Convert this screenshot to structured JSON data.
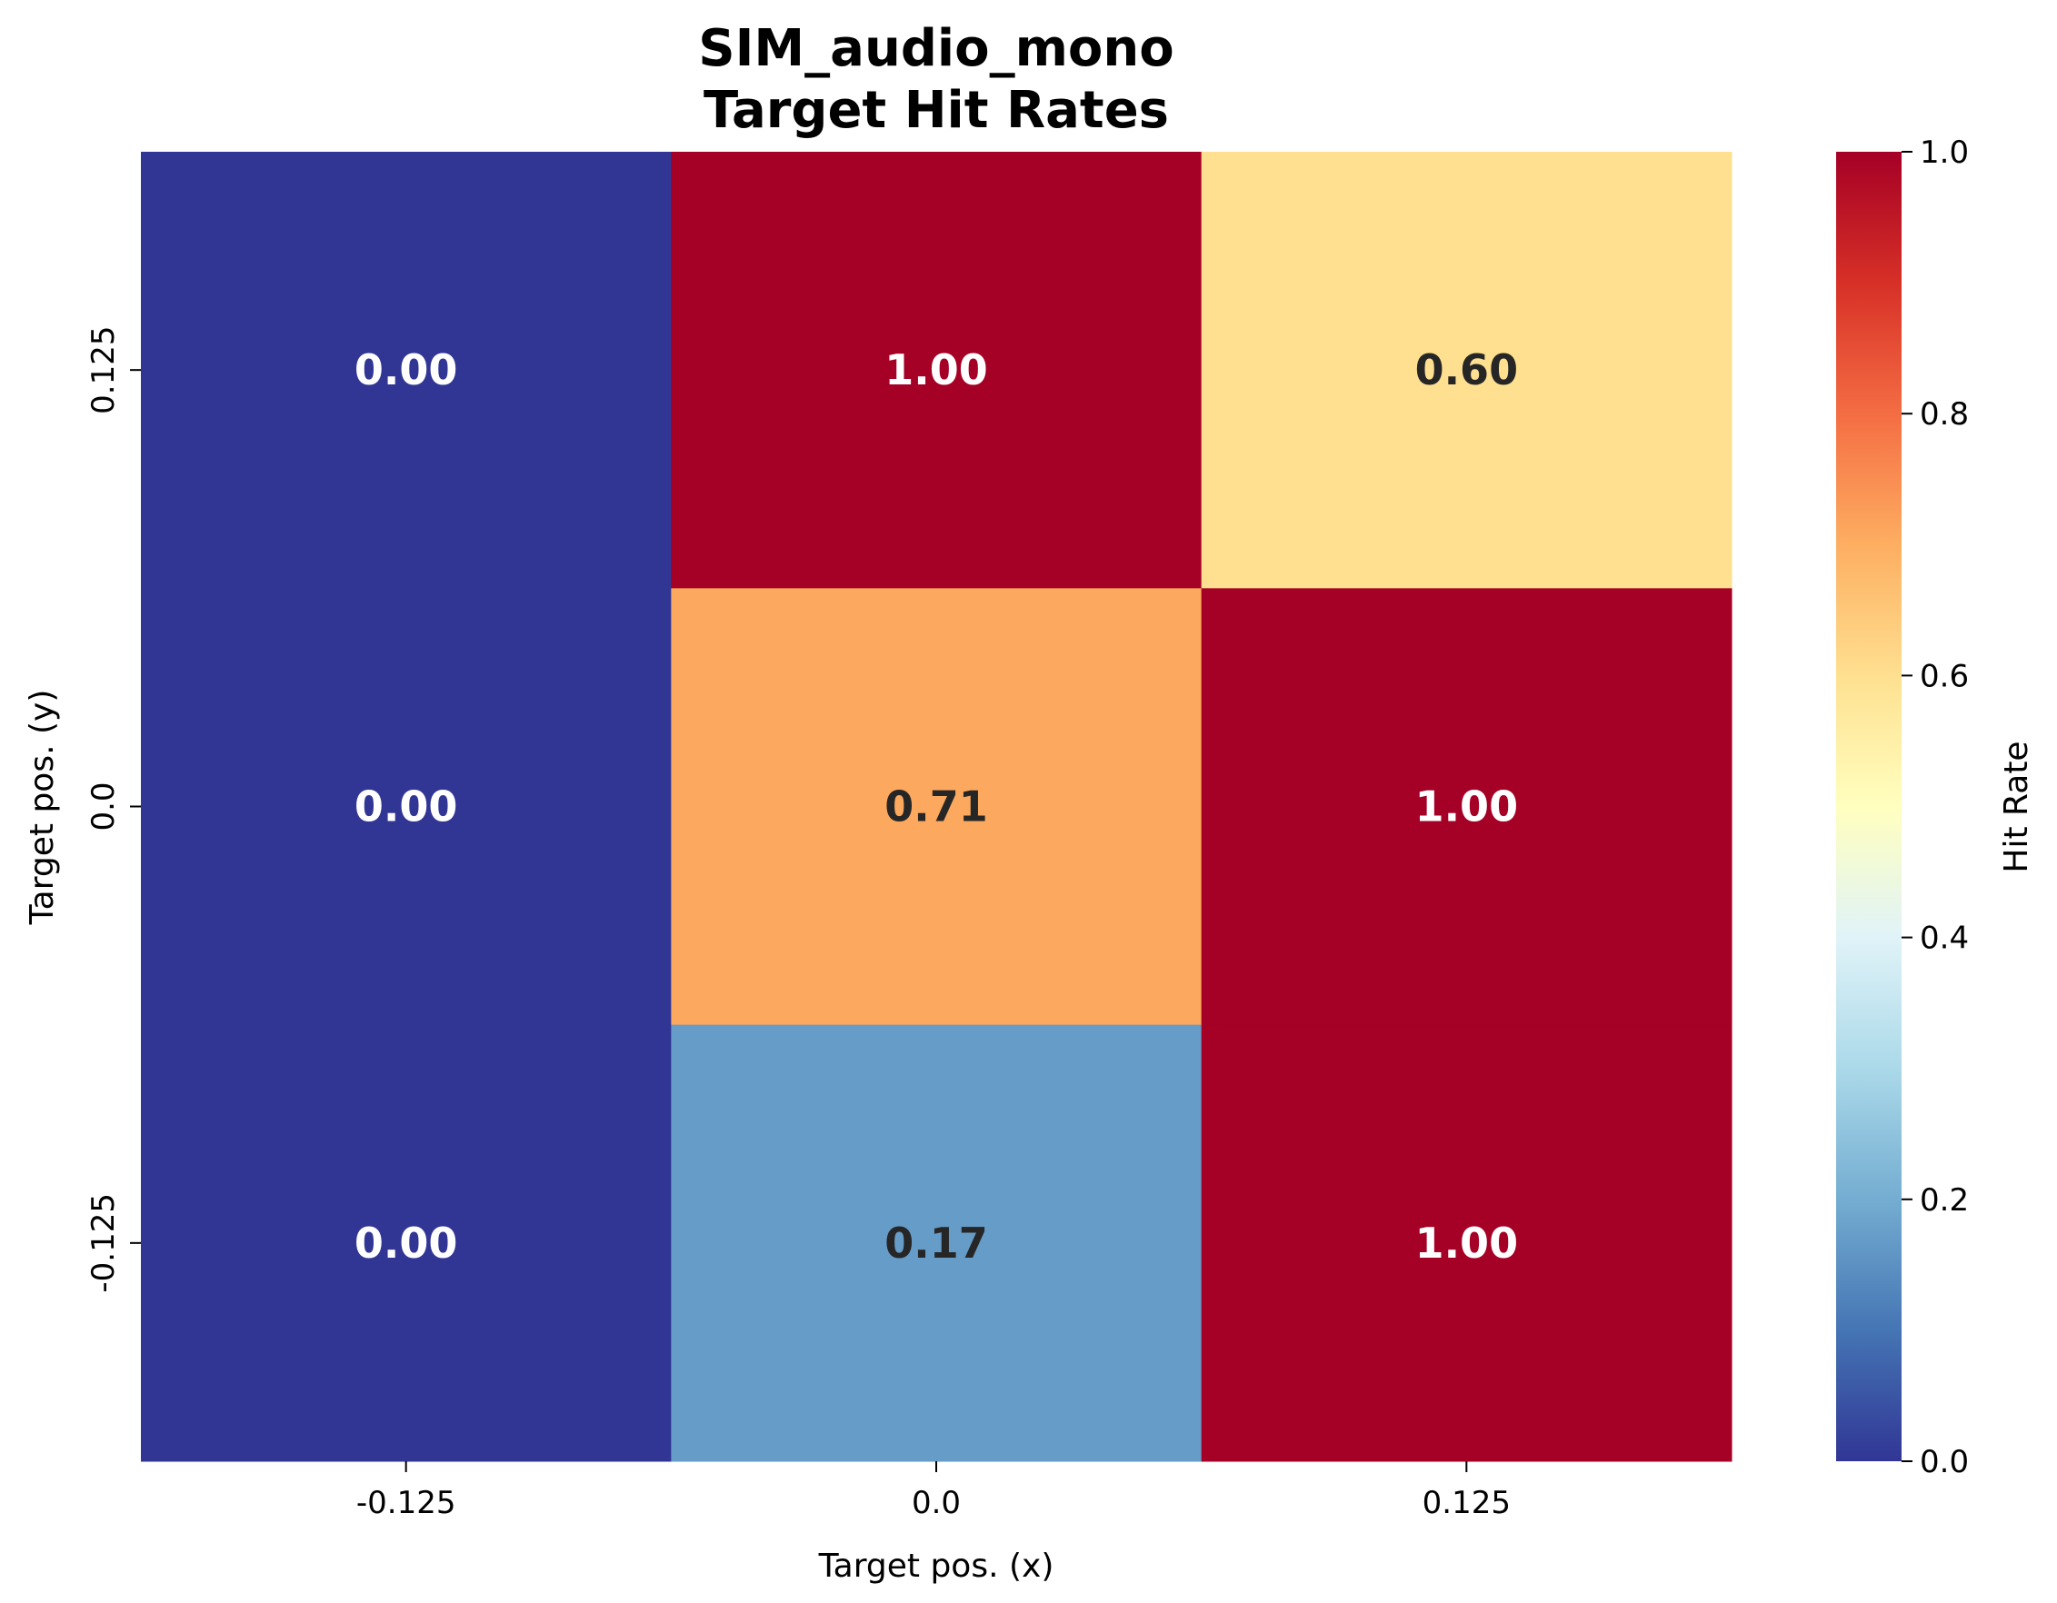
{
  "chart_data": {
    "type": "heatmap",
    "title_lines": [
      "SIM_audio_mono",
      "Target Hit Rates"
    ],
    "xlabel": "Target pos. (x)",
    "ylabel": "Target pos. (y)",
    "x_categories": [
      "-0.125",
      "0.0",
      "0.125"
    ],
    "y_categories": [
      "0.125",
      "0.0",
      "-0.125"
    ],
    "values": [
      [
        0.0,
        1.0,
        0.6
      ],
      [
        0.0,
        0.71,
        1.0
      ],
      [
        0.0,
        0.17,
        1.0
      ]
    ],
    "value_format": "0.00",
    "colormap": "RdYlBu_r",
    "vmin": 0.0,
    "vmax": 1.0,
    "colorbar": {
      "label": "Hit Rate",
      "ticks": [
        "0.0",
        "0.2",
        "0.4",
        "0.6",
        "0.8",
        "1.0"
      ]
    },
    "colormap_stops": [
      "#313695",
      "#4575b4",
      "#74add1",
      "#abd9e9",
      "#e0f3f8",
      "#ffffbf",
      "#fee090",
      "#fdae61",
      "#f46d43",
      "#d73027",
      "#a50026"
    ]
  }
}
